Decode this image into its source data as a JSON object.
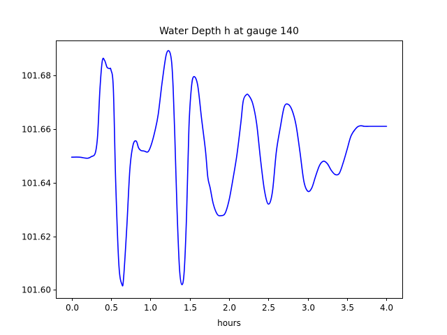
{
  "chart_data": {
    "type": "line",
    "title": "Water Depth h at gauge 140",
    "xlabel": "hours",
    "ylabel": "",
    "xlim": [
      -0.2,
      4.2
    ],
    "ylim": [
      101.597,
      101.693
    ],
    "xticks": [
      0.0,
      0.5,
      1.0,
      1.5,
      2.0,
      2.5,
      3.0,
      3.5,
      4.0
    ],
    "xtick_labels": [
      "0.0",
      "0.5",
      "1.0",
      "1.5",
      "2.0",
      "2.5",
      "3.0",
      "3.5",
      "4.0"
    ],
    "yticks": [
      101.6,
      101.62,
      101.64,
      101.66,
      101.68
    ],
    "ytick_labels": [
      "101.60",
      "101.62",
      "101.64",
      "101.66",
      "101.68"
    ],
    "grid": false,
    "series": [
      {
        "color": "#0000ff",
        "x": [
          0.0,
          0.1,
          0.2,
          0.25,
          0.3,
          0.33,
          0.36,
          0.39,
          0.42,
          0.45,
          0.48,
          0.5,
          0.53,
          0.56,
          0.6,
          0.64,
          0.66,
          0.7,
          0.74,
          0.78,
          0.82,
          0.85,
          0.88,
          0.92,
          0.97,
          1.01,
          1.06,
          1.1,
          1.15,
          1.2,
          1.24,
          1.27,
          1.29,
          1.31,
          1.34,
          1.37,
          1.4,
          1.43,
          1.46,
          1.49,
          1.52,
          1.55,
          1.6,
          1.65,
          1.7,
          1.73,
          1.76,
          1.8,
          1.85,
          1.9,
          1.95,
          2.0,
          2.05,
          2.1,
          2.15,
          2.18,
          2.22,
          2.25,
          2.3,
          2.35,
          2.4,
          2.45,
          2.5,
          2.55,
          2.6,
          2.65,
          2.7,
          2.75,
          2.8,
          2.85,
          2.9,
          2.95,
          3.0,
          3.05,
          3.1,
          3.15,
          3.2,
          3.25,
          3.3,
          3.35,
          3.4,
          3.45,
          3.5,
          3.55,
          3.62,
          3.67,
          3.72,
          3.78,
          3.85,
          3.9,
          3.95,
          4.0
        ],
        "y": [
          101.6495,
          101.6495,
          101.6491,
          101.6497,
          101.651,
          101.6575,
          101.675,
          101.6855,
          101.6855,
          101.683,
          101.6825,
          101.682,
          101.675,
          101.64,
          101.6095,
          101.602,
          101.6045,
          101.623,
          101.645,
          101.654,
          101.6555,
          101.653,
          101.652,
          101.6518,
          101.6515,
          101.654,
          101.6595,
          101.6655,
          101.6775,
          101.6875,
          101.689,
          101.685,
          101.675,
          101.658,
          101.629,
          101.608,
          101.602,
          101.607,
          101.628,
          101.6605,
          101.675,
          101.6795,
          101.6765,
          101.664,
          101.652,
          101.642,
          101.638,
          101.632,
          101.6282,
          101.6277,
          101.6286,
          101.6335,
          101.6415,
          101.6505,
          101.6625,
          101.6705,
          101.6728,
          101.6725,
          101.6695,
          101.662,
          101.6485,
          101.637,
          101.632,
          101.6365,
          101.6515,
          101.6605,
          101.6682,
          101.6692,
          101.667,
          101.6615,
          101.6515,
          101.6405,
          101.6368,
          101.638,
          101.6425,
          101.6465,
          101.648,
          101.647,
          101.6445,
          101.643,
          101.6435,
          101.6475,
          101.6525,
          101.6575,
          101.6605,
          101.6612,
          101.661,
          101.661,
          101.661,
          101.661,
          101.661,
          101.661
        ]
      }
    ]
  }
}
